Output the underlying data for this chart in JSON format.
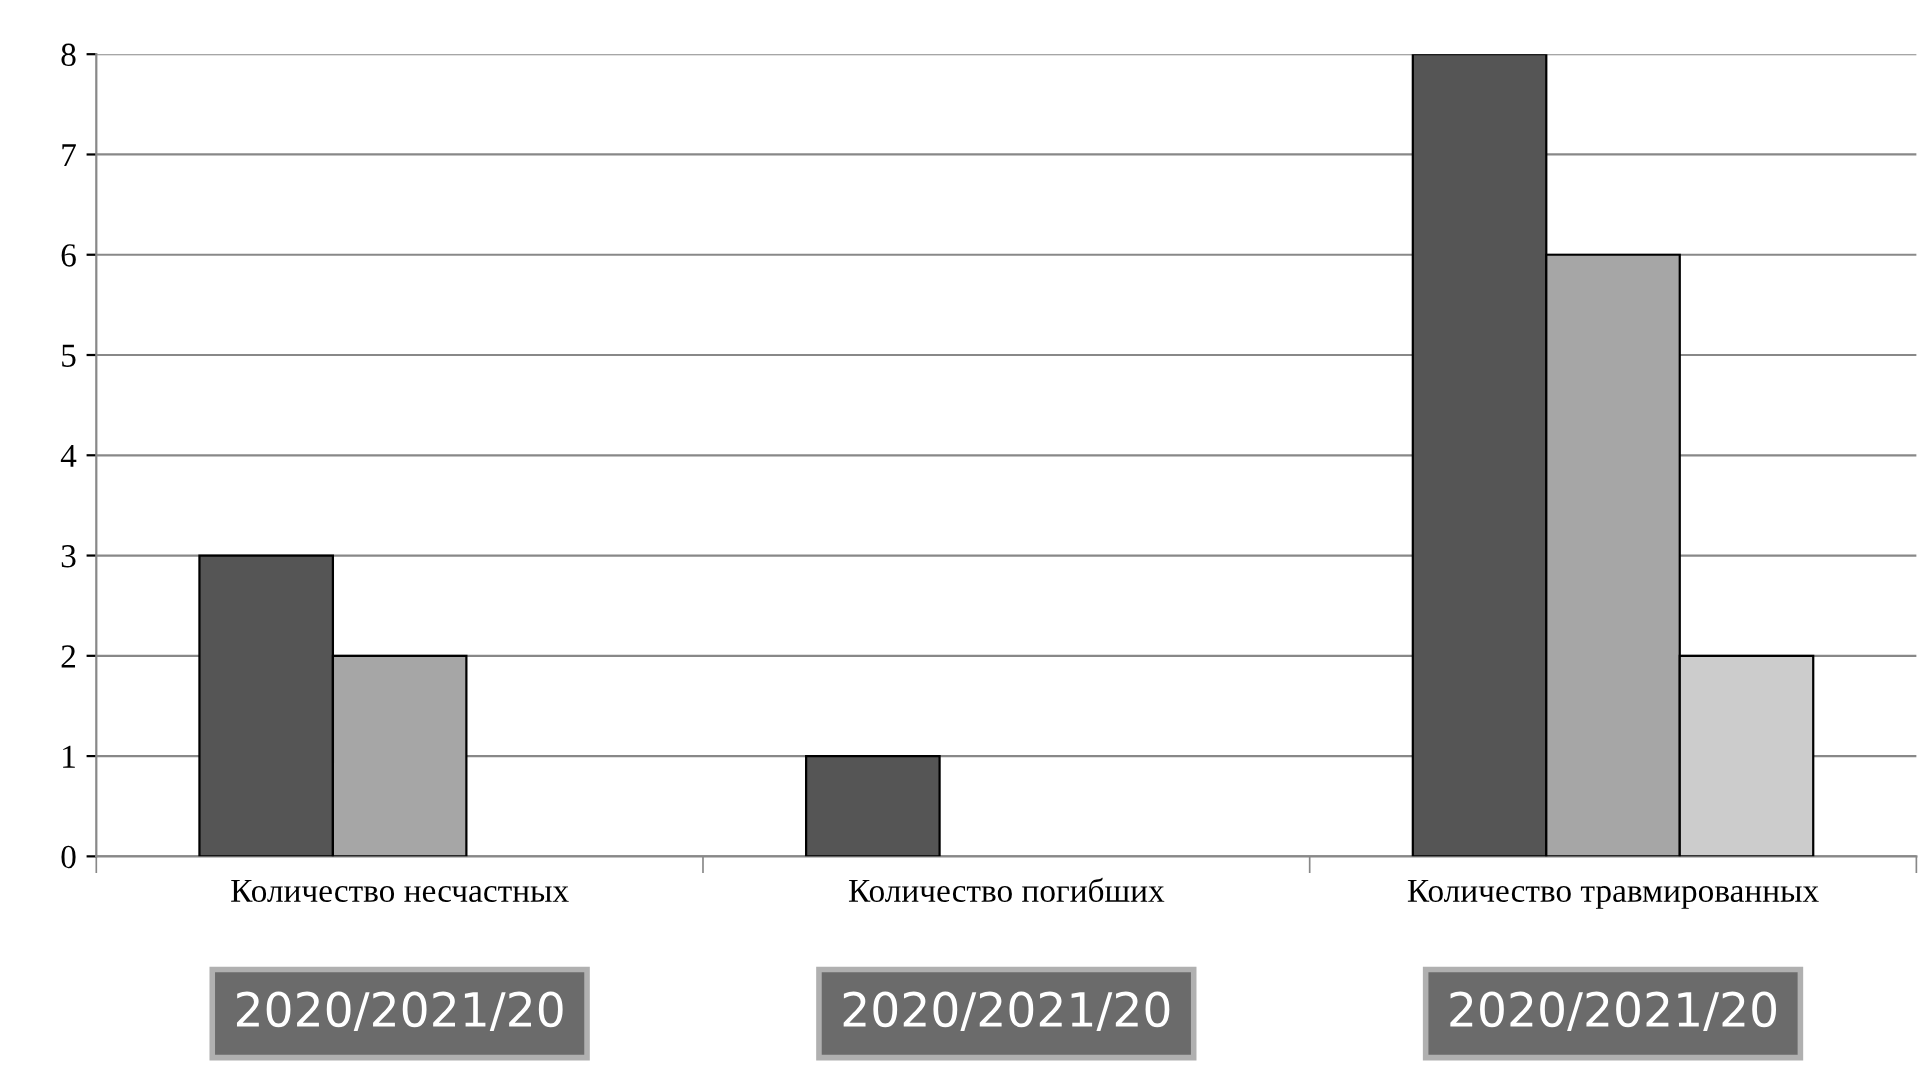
{
  "chart_data": {
    "type": "bar",
    "categories": [
      "Количество несчастных",
      "Количество погибших",
      "Количество травмированных"
    ],
    "series": [
      {
        "color": "#555555",
        "values": [
          3,
          1,
          8
        ]
      },
      {
        "color": "#a6a6a6",
        "values": [
          2,
          0,
          6
        ]
      },
      {
        "color": "#cccccc",
        "values": [
          0,
          0,
          2
        ]
      }
    ],
    "ylim": [
      0,
      8
    ],
    "yticks": [
      0,
      1,
      2,
      3,
      4,
      5,
      6,
      7,
      8
    ],
    "grid": "y",
    "legend": false,
    "annotations": [
      "2020/2021/20",
      "2020/2021/20",
      "2020/2021/20"
    ]
  }
}
